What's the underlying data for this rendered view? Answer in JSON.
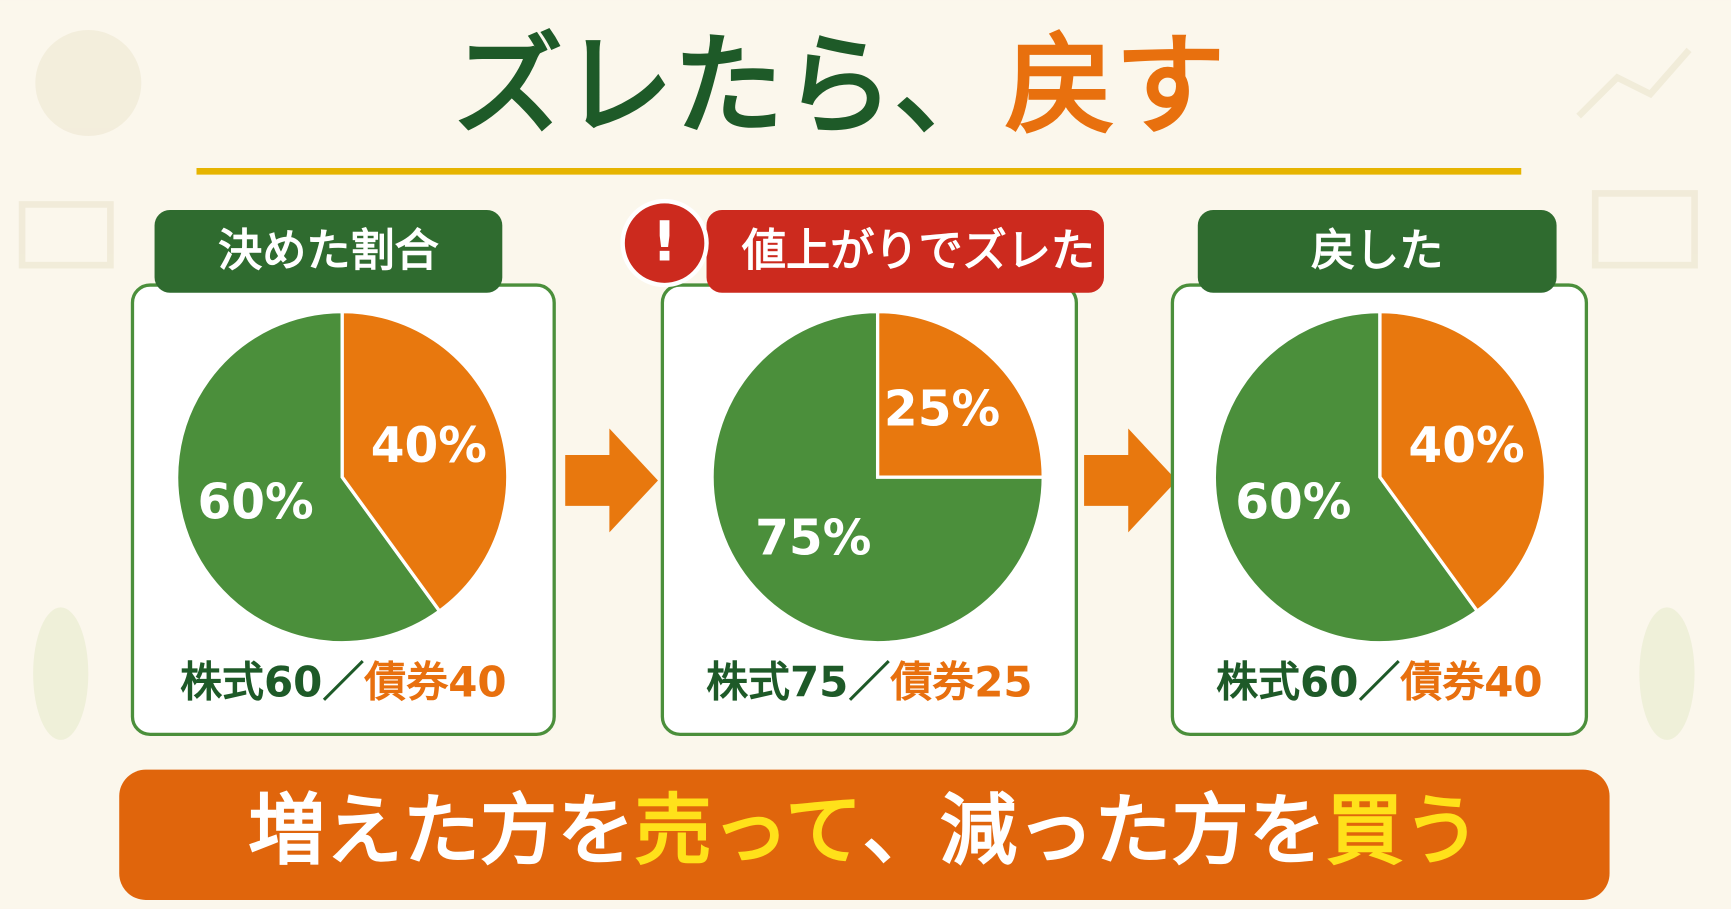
{
  "headline": {
    "parts": [
      {
        "text": "ズレたら、",
        "color": "#1e5a28"
      },
      {
        "text": "戻す",
        "color": "#e8700e"
      }
    ]
  },
  "chart_data": [
    {
      "type": "pie",
      "title": "決めた割合",
      "title_color": "#2f6b2f",
      "categories": [
        "株式",
        "債券"
      ],
      "values": [
        60,
        40
      ],
      "value_labels": [
        "60%",
        "40%"
      ],
      "colors": [
        "#4b8f3b",
        "#e8780e"
      ],
      "caption_separator": "／"
    },
    {
      "type": "pie",
      "title": "値上がりでズレた",
      "title_color": "#cc2a1e",
      "badge": "!",
      "categories": [
        "株式",
        "債券"
      ],
      "values": [
        75,
        25
      ],
      "value_labels": [
        "75%",
        "25%"
      ],
      "colors": [
        "#4b8f3b",
        "#e8780e"
      ],
      "caption_separator": "／"
    },
    {
      "type": "pie",
      "title": "戻した",
      "title_color": "#2f6b2f",
      "categories": [
        "株式",
        "債券"
      ],
      "values": [
        60,
        40
      ],
      "value_labels": [
        "60%",
        "40%"
      ],
      "colors": [
        "#4b8f3b",
        "#e8780e"
      ],
      "caption_separator": "／"
    }
  ],
  "banner": {
    "parts": [
      {
        "text": "増えた方を",
        "color": "#ffffff"
      },
      {
        "text": "売って",
        "color": "#ffe11a"
      },
      {
        "text": "、減った方を",
        "color": "#ffffff"
      },
      {
        "text": "買う",
        "color": "#ffe11a"
      }
    ]
  }
}
